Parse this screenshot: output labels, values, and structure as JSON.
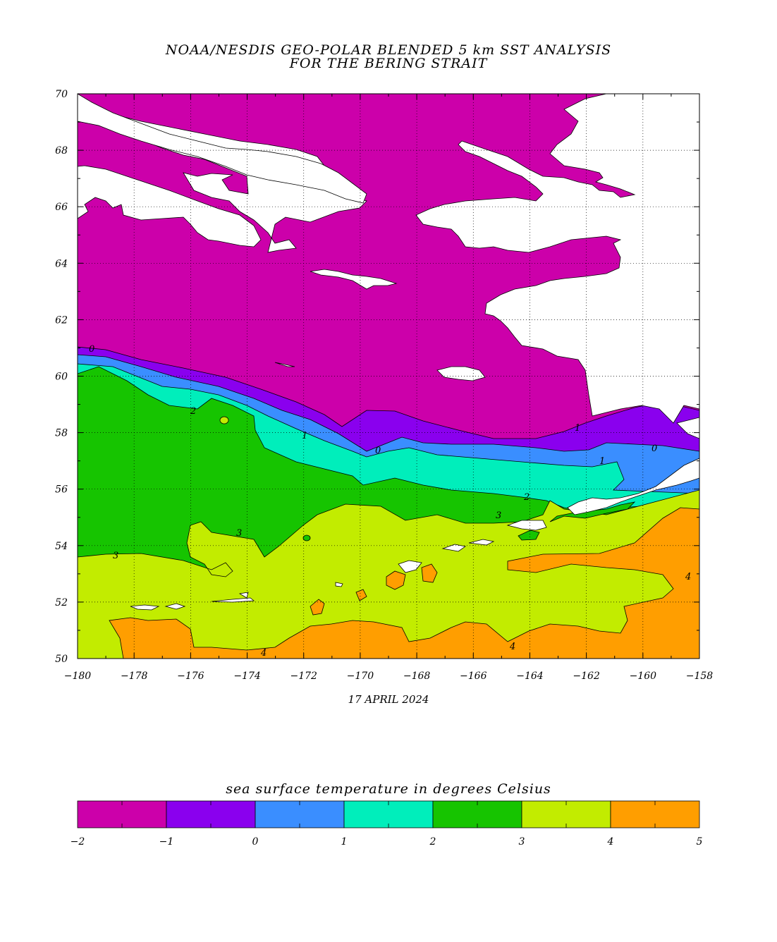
{
  "title_line1": "NOAA/NESDIS GEO-POLAR BLENDED 5 km SST ANALYSIS",
  "title_line2": "FOR THE BERING STRAIT",
  "date": "17 APRIL 2024",
  "map": {
    "lon_range": [
      -180,
      -158
    ],
    "lat_range": [
      50,
      70
    ],
    "x_ticks": [
      "−180",
      "−178",
      "−176",
      "−174",
      "−172",
      "−170",
      "−168",
      "−166",
      "−164",
      "−162",
      "−160",
      "−158"
    ],
    "y_ticks": [
      "50",
      "52",
      "54",
      "56",
      "58",
      "60",
      "62",
      "64",
      "66",
      "68",
      "70"
    ],
    "contour_labels": [
      "0",
      "0",
      "0",
      "1",
      "1",
      "1",
      "2",
      "2",
      "3",
      "3",
      "3",
      "4",
      "4",
      "4"
    ],
    "land_color": "#ffffff",
    "band_colors": {
      "b_m2_m1": "#cc00aa",
      "b_m1_0": "#8a00ee",
      "b_0_1": "#3a8eff",
      "b_1_2": "#00eebb",
      "b_2_3": "#16c400",
      "b_3_4": "#c2ec00",
      "b_4_5": "#ff9e00"
    }
  },
  "legend": {
    "title": "sea surface temperature in degrees Celsius",
    "colors": [
      "#cc00aa",
      "#8a00ee",
      "#3a8eff",
      "#00eebb",
      "#16c400",
      "#c2ec00",
      "#ff9e00"
    ],
    "labels": [
      "−2",
      "−1",
      "0",
      "1",
      "2",
      "3",
      "4",
      "5"
    ]
  }
}
